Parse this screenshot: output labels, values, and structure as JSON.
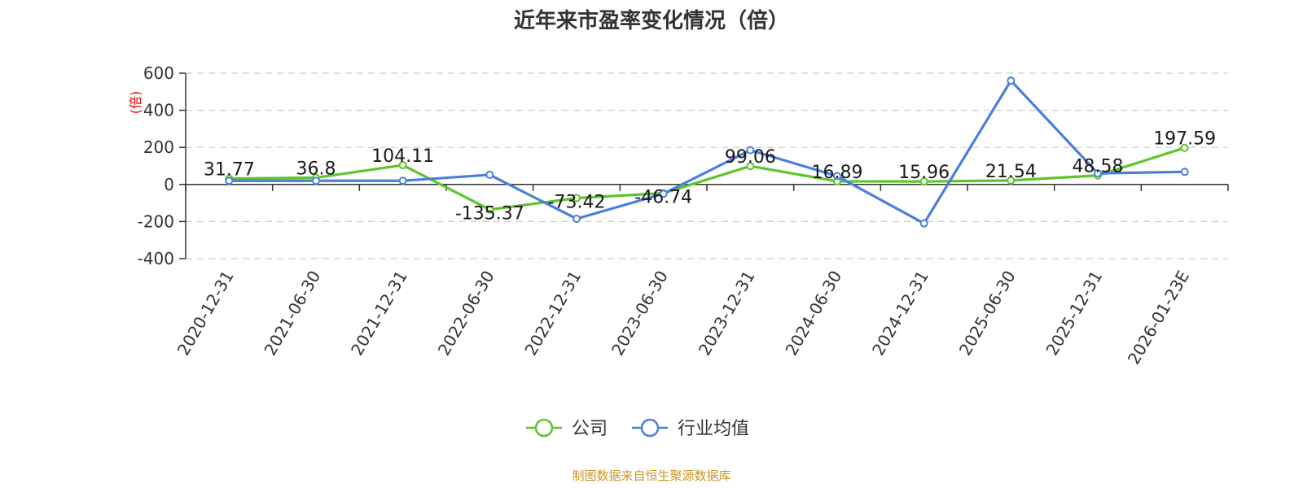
{
  "chart_data": {
    "type": "line",
    "title": "近年来市盈率变化情况（倍）",
    "ylabel": "(倍)",
    "ylim": [
      -400,
      600
    ],
    "yticks": [
      600,
      400,
      200,
      0,
      -200,
      -400
    ],
    "grid": true,
    "legend_position": "bottom",
    "categories": [
      "2020-12-31",
      "2021-06-30",
      "2021-12-31",
      "2022-06-30",
      "2022-12-31",
      "2023-06-30",
      "2023-12-31",
      "2024-06-30",
      "2024-12-31",
      "2025-06-30",
      "2025-12-31",
      "2026-01-23E"
    ],
    "series": [
      {
        "name": "公司",
        "color": "#5dc52a",
        "values": [
          31.77,
          36.8,
          104.11,
          -135.37,
          -73.42,
          -46.74,
          99.06,
          16.89,
          15.96,
          21.54,
          48.58,
          197.59
        ],
        "labels": [
          "31.77",
          "36.8",
          "104.11",
          "-135.37",
          "-73.42",
          "-46.74",
          "99.06",
          "16.89",
          "15.96",
          "21.54",
          "48.58",
          "197.59"
        ]
      },
      {
        "name": "行业均值",
        "color": "#4a7fdc",
        "values": [
          20,
          20,
          20,
          52,
          -185,
          -50,
          185,
          45,
          -210,
          560,
          60,
          68
        ]
      }
    ],
    "source": "制图数据来自恒生聚源数据库"
  }
}
